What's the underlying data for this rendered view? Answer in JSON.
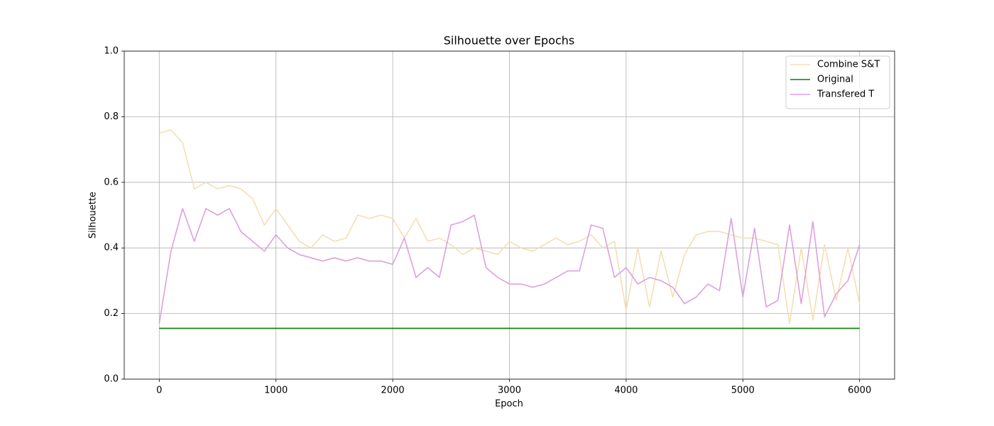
{
  "chart_data": {
    "type": "line",
    "title": "Silhouette over Epochs",
    "x_label": "Epoch",
    "y_label": "Silhouette",
    "x": [
      0,
      100,
      200,
      300,
      400,
      500,
      600,
      700,
      800,
      900,
      1000,
      1100,
      1200,
      1300,
      1400,
      1500,
      1600,
      1700,
      1800,
      1900,
      2000,
      2100,
      2200,
      2300,
      2400,
      2500,
      2600,
      2700,
      2800,
      2900,
      3000,
      3100,
      3200,
      3300,
      3400,
      3500,
      3600,
      3700,
      3800,
      3900,
      4000,
      4100,
      4200,
      4300,
      4400,
      4500,
      4600,
      4700,
      4800,
      4900,
      5000,
      5100,
      5200,
      5300,
      5400,
      5500,
      5600,
      5700,
      5800,
      5900,
      6000
    ],
    "series": [
      {
        "name": "Combine S&T",
        "color": "#f5deb3",
        "values": [
          0.75,
          0.76,
          0.72,
          0.58,
          0.6,
          0.58,
          0.59,
          0.58,
          0.55,
          0.47,
          0.52,
          0.47,
          0.42,
          0.4,
          0.44,
          0.42,
          0.43,
          0.5,
          0.49,
          0.5,
          0.49,
          0.43,
          0.49,
          0.42,
          0.43,
          0.41,
          0.38,
          0.4,
          0.39,
          0.38,
          0.42,
          0.4,
          0.39,
          0.41,
          0.43,
          0.41,
          0.42,
          0.44,
          0.4,
          0.42,
          0.21,
          0.4,
          0.22,
          0.39,
          0.25,
          0.38,
          0.44,
          0.45,
          0.45,
          0.44,
          0.43,
          0.43,
          0.42,
          0.41,
          0.17,
          0.4,
          0.18,
          0.41,
          0.24,
          0.4,
          0.23
        ]
      },
      {
        "name": "Original",
        "color": "#008000",
        "values": [
          0.155,
          0.155,
          0.155,
          0.155,
          0.155,
          0.155,
          0.155,
          0.155,
          0.155,
          0.155,
          0.155,
          0.155,
          0.155,
          0.155,
          0.155,
          0.155,
          0.155,
          0.155,
          0.155,
          0.155,
          0.155,
          0.155,
          0.155,
          0.155,
          0.155,
          0.155,
          0.155,
          0.155,
          0.155,
          0.155,
          0.155,
          0.155,
          0.155,
          0.155,
          0.155,
          0.155,
          0.155,
          0.155,
          0.155,
          0.155,
          0.155,
          0.155,
          0.155,
          0.155,
          0.155,
          0.155,
          0.155,
          0.155,
          0.155,
          0.155,
          0.155,
          0.155,
          0.155,
          0.155,
          0.155,
          0.155,
          0.155,
          0.155,
          0.155,
          0.155,
          0.155
        ]
      },
      {
        "name": "Transfered T",
        "color": "#dda0dd",
        "values": [
          0.17,
          0.39,
          0.52,
          0.42,
          0.52,
          0.5,
          0.52,
          0.45,
          0.42,
          0.39,
          0.44,
          0.4,
          0.38,
          0.37,
          0.36,
          0.37,
          0.36,
          0.37,
          0.36,
          0.36,
          0.35,
          0.43,
          0.31,
          0.34,
          0.31,
          0.47,
          0.48,
          0.5,
          0.34,
          0.31,
          0.29,
          0.29,
          0.28,
          0.29,
          0.31,
          0.33,
          0.33,
          0.47,
          0.46,
          0.31,
          0.34,
          0.29,
          0.31,
          0.3,
          0.28,
          0.23,
          0.25,
          0.29,
          0.27,
          0.49,
          0.25,
          0.46,
          0.22,
          0.24,
          0.47,
          0.23,
          0.48,
          0.19,
          0.26,
          0.3,
          0.41
        ]
      }
    ],
    "xlim": [
      -300,
      6300
    ],
    "ylim": [
      0,
      1
    ],
    "xticks": [
      0,
      1000,
      2000,
      3000,
      4000,
      5000,
      6000
    ],
    "yticks": [
      {
        "value": 0,
        "label": "0.0"
      },
      0.2,
      0.4,
      0.6,
      0.8,
      {
        "value": 1,
        "label": "1.0"
      }
    ],
    "grid": true,
    "legend": "upper right"
  }
}
